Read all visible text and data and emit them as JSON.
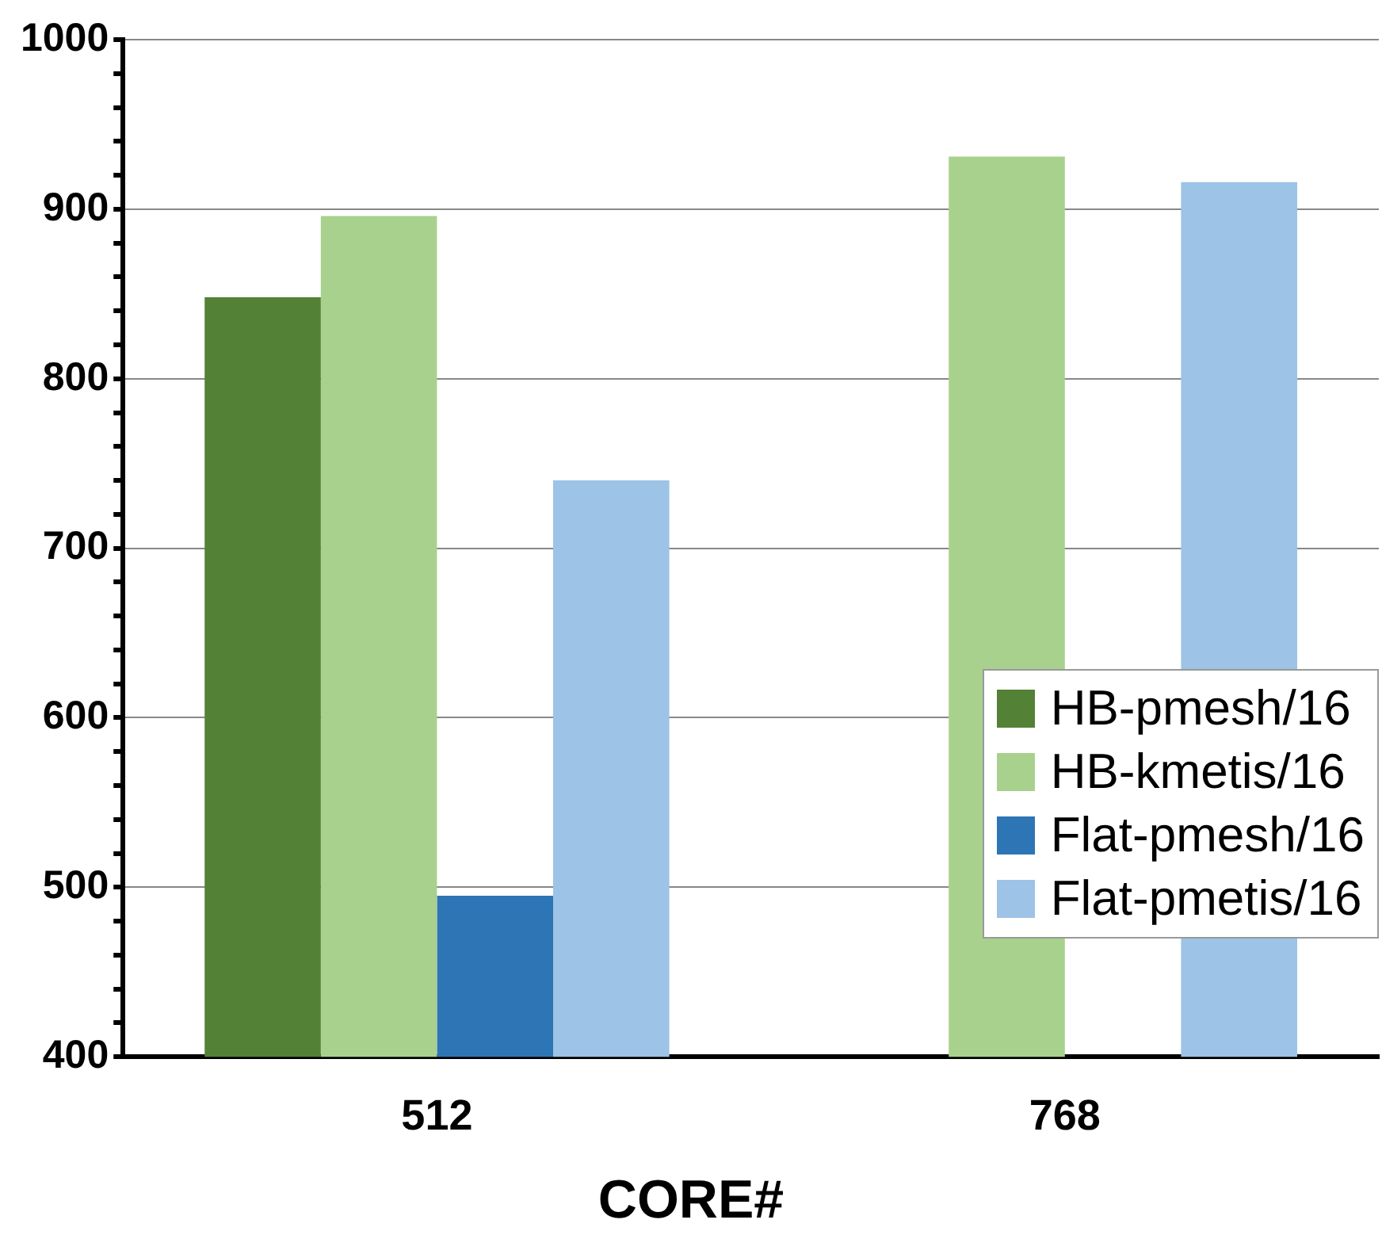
{
  "chart_data": {
    "type": "bar",
    "xlabel": "CORE#",
    "categories": [
      "512",
      "768"
    ],
    "series": [
      {
        "name": "HB-pmesh/16",
        "color": "#538135",
        "values": [
          848,
          null
        ]
      },
      {
        "name": "HB-kmetis/16",
        "color": "#a9d18e",
        "values": [
          896,
          931
        ]
      },
      {
        "name": "Flat-pmesh/16",
        "color": "#2e75b6",
        "values": [
          495,
          null
        ]
      },
      {
        "name": "Flat-pmetis/16",
        "color": "#9dc3e6",
        "values": [
          740,
          916
        ]
      }
    ],
    "ylim": [
      400,
      1000
    ],
    "yticks": [
      400,
      {
        "value": 420,
        "label": null
      },
      {
        "value": 440,
        "label": null
      },
      {
        "value": 460,
        "label": null
      },
      {
        "value": 480,
        "label": null
      },
      500,
      {
        "value": 520,
        "label": null
      },
      {
        "value": 540,
        "label": null
      },
      {
        "value": 560,
        "label": null
      },
      {
        "value": 580,
        "label": null
      },
      600,
      {
        "value": 620,
        "label": null
      },
      {
        "value": 640,
        "label": null
      },
      {
        "value": 660,
        "label": null
      },
      {
        "value": 680,
        "label": null
      },
      700,
      {
        "value": 720,
        "label": null
      },
      {
        "value": 740,
        "label": null
      },
      {
        "value": 760,
        "label": null
      },
      {
        "value": 780,
        "label": null
      },
      800,
      {
        "value": 820,
        "label": null
      },
      {
        "value": 840,
        "label": null
      },
      {
        "value": 860,
        "label": null
      },
      {
        "value": 880,
        "label": null
      },
      900,
      {
        "value": 920,
        "label": null
      },
      {
        "value": 940,
        "label": null
      },
      {
        "value": 960,
        "label": null
      },
      {
        "value": 980,
        "label": null
      },
      1000
    ],
    "grid": "y",
    "legend": "bottom right"
  }
}
